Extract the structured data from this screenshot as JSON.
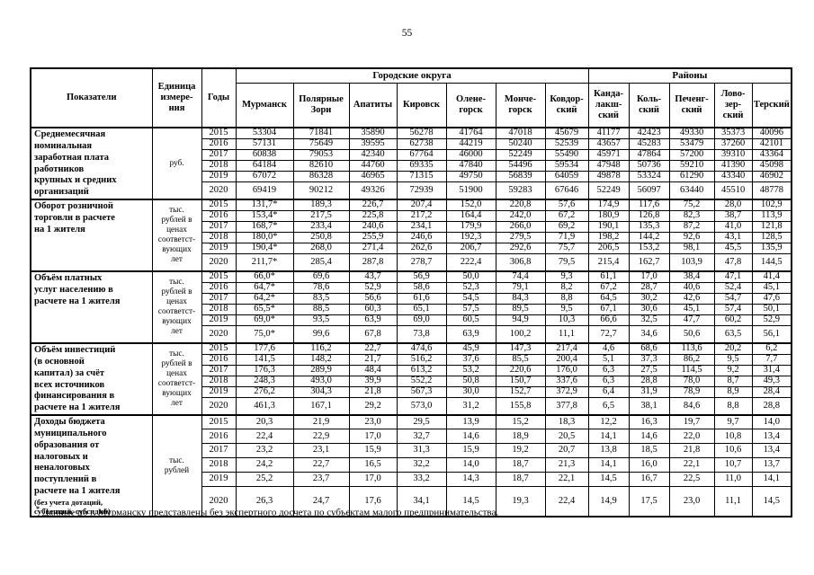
{
  "page": {
    "number": "55",
    "footnote_marker": "*",
    "footnote": "Данные по г. Мурманску представлены без экспертного досчета по субъектам малого предпринимательства."
  },
  "table": {
    "headers": {
      "indicators": "Показатели",
      "unit": "Единица\nизмере-\nния",
      "years": "Годы",
      "group_urban": "Городские округа",
      "group_districts": "Районы",
      "columns": [
        "Мурманск",
        "Полярные\nЗори",
        "Апатиты",
        "Кировск",
        "Олене-\nгорск",
        "Монче-\nгорск",
        "Ковдор-\nский",
        "Канда-\nлакш-\nский",
        "Коль-\nский",
        "Печенг-\nский",
        "Лово-\nзер-\nский",
        "Терский"
      ]
    },
    "blocks": [
      {
        "indicator": "Среднемесячная\nноминальная\nзаработная плата\nработников\nкрупных и средних\nорганизаций",
        "unit": "руб.",
        "rows": [
          {
            "year": "2015",
            "values": [
              "53304",
              "71841",
              "35890",
              "56278",
              "41764",
              "47018",
              "45679",
              "41177",
              "42423",
              "49330",
              "35373",
              "40096"
            ]
          },
          {
            "year": "2016",
            "values": [
              "57131",
              "75649",
              "39595",
              "62738",
              "44219",
              "50240",
              "52539",
              "43657",
              "45283",
              "53479",
              "37260",
              "42101"
            ]
          },
          {
            "year": "2017",
            "values": [
              "60838",
              "79053",
              "42340",
              "67764",
              "46000",
              "52249",
              "55490",
              "45971",
              "47864",
              "57200",
              "39310",
              "43364"
            ]
          },
          {
            "year": "2018",
            "values": [
              "64184",
              "82610",
              "44760",
              "69335",
              "47840",
              "54496",
              "59534",
              "47948",
              "50736",
              "59210",
              "41390",
              "45098"
            ]
          },
          {
            "year": "2019",
            "values": [
              "67072",
              "86328",
              "46965",
              "71315",
              "49750",
              "56839",
              "64059",
              "49878",
              "53324",
              "61290",
              "43340",
              "46902"
            ]
          },
          {
            "year": "2020",
            "values": [
              "69419",
              "90212",
              "49326",
              "72939",
              "51900",
              "59283",
              "67646",
              "52249",
              "56097",
              "63440",
              "45510",
              "48778"
            ]
          }
        ]
      },
      {
        "indicator": "Оборот розничной\nторговли в расчете\nна 1 жителя",
        "unit": "тыс.\nрублей в\nценах\nсоответст-\nвующих\nлет",
        "rows": [
          {
            "year": "2015",
            "values": [
              "131,7*",
              "189,3",
              "226,7",
              "207,4",
              "152,0",
              "220,8",
              "57,6",
              "174,9",
              "117,6",
              "75,2",
              "28,0",
              "102,9"
            ]
          },
          {
            "year": "2016",
            "values": [
              "153,4*",
              "217,5",
              "225,8",
              "217,2",
              "164,4",
              "242,0",
              "67,2",
              "180,9",
              "126,8",
              "82,3",
              "38,7",
              "113,9"
            ]
          },
          {
            "year": "2017",
            "values": [
              "168,7*",
              "233,4",
              "240,6",
              "234,1",
              "179,9",
              "266,0",
              "69,2",
              "190,1",
              "135,3",
              "87,2",
              "41,0",
              "121,8"
            ]
          },
          {
            "year": "2018",
            "values": [
              "180,0*",
              "250,8",
              "255,9",
              "246,6",
              "192,3",
              "279,5",
              "71,9",
              "198,2",
              "144,2",
              "92,6",
              "43,1",
              "128,5"
            ]
          },
          {
            "year": "2019",
            "values": [
              "190,4*",
              "268,0",
              "271,4",
              "262,6",
              "206,7",
              "292,6",
              "75,7",
              "206,5",
              "153,2",
              "98,1",
              "45,5",
              "135,9"
            ]
          },
          {
            "year": "2020",
            "values": [
              "211,7*",
              "285,4",
              "287,8",
              "278,7",
              "222,4",
              "306,8",
              "79,5",
              "215,4",
              "162,7",
              "103,9",
              "47,8",
              "144,5"
            ]
          }
        ]
      },
      {
        "indicator": "Объём платных\nуслуг населению  в\nрасчете на 1 жителя",
        "unit": "тыс.\nрублей в\nценах\nсоответст-\nвующих\nлет",
        "rows": [
          {
            "year": "2015",
            "values": [
              "66,0*",
              "69,6",
              "43,7",
              "56,9",
              "50,0",
              "74,4",
              "9,3",
              "61,1",
              "17,0",
              "38,4",
              "47,1",
              "41,4"
            ]
          },
          {
            "year": "2016",
            "values": [
              "64,7*",
              "78,6",
              "52,9",
              "58,6",
              "52,3",
              "79,1",
              "8,2",
              "67,2",
              "28,7",
              "40,6",
              "52,4",
              "45,1"
            ]
          },
          {
            "year": "2017",
            "values": [
              "64,2*",
              "83,5",
              "56,6",
              "61,6",
              "54,5",
              "84,3",
              "8,8",
              "64,5",
              "30,2",
              "42,6",
              "54,7",
              "47,6"
            ]
          },
          {
            "year": "2018",
            "values": [
              "65,5*",
              "88,5",
              "60,3",
              "65,1",
              "57,5",
              "89,5",
              "9,5",
              "67,1",
              "30,6",
              "45,1",
              "57,4",
              "50,1"
            ]
          },
          {
            "year": "2019",
            "values": [
              "69,0*",
              "93,5",
              "63,9",
              "69,0",
              "60,5",
              "94,9",
              "10,3",
              "66,6",
              "32,5",
              "47,7",
              "60,2",
              "52,9"
            ]
          },
          {
            "year": "2020",
            "values": [
              "75,0*",
              "99,6",
              "67,8",
              "73,8",
              "63,9",
              "100,2",
              "11,1",
              "72,7",
              "34,6",
              "50,6",
              "63,5",
              "56,1"
            ]
          }
        ]
      },
      {
        "indicator": "Объём инвестиций\n(в основной\nкапитал) за счёт\nвсех источников\nфинансирования в\nрасчете на 1 жителя",
        "unit": "тыс.\nрублей в\nценах\nсоответст-\nвующих\nлет",
        "rows": [
          {
            "year": "2015",
            "values": [
              "177,6",
              "116,2",
              "22,7",
              "474,6",
              "45,9",
              "147,3",
              "217,4",
              "4,6",
              "68,6",
              "113,6",
              "20,2",
              "6,2"
            ]
          },
          {
            "year": "2016",
            "values": [
              "141,5",
              "148,2",
              "21,7",
              "516,2",
              "37,6",
              "85,5",
              "200,4",
              "5,1",
              "37,3",
              "86,2",
              "9,5",
              "7,7"
            ]
          },
          {
            "year": "2017",
            "values": [
              "176,3",
              "289,9",
              "48,4",
              "613,2",
              "53,2",
              "220,6",
              "176,0",
              "6,3",
              "27,5",
              "114,5",
              "9,2",
              "31,4"
            ]
          },
          {
            "year": "2018",
            "values": [
              "248,3",
              "493,0",
              "39,9",
              "552,2",
              "50,8",
              "150,7",
              "337,6",
              "6,3",
              "28,8",
              "78,0",
              "8,7",
              "49,3"
            ]
          },
          {
            "year": "2019",
            "values": [
              "276,2",
              "304,3",
              "21,8",
              "567,3",
              "30,0",
              "152,7",
              "372,9",
              "6,4",
              "31,9",
              "78,9",
              "8,9",
              "28,4"
            ]
          },
          {
            "year": "2020",
            "values": [
              "461,3",
              "167,1",
              "29,2",
              "573,0",
              "31,2",
              "155,8",
              "377,8",
              "6,5",
              "38,1",
              "84,6",
              "8,8",
              "28,8"
            ]
          }
        ]
      },
      {
        "indicator": "Доходы бюджета\nмуниципального\nобразования от\nналоговых и\nненалоговых\nпоступлений в\nрасчете на 1 жителя",
        "indicator_note": "(без учета дотаций,\nсубвенций, субсидий)",
        "unit": "тыс.\nрублей",
        "rows": [
          {
            "year": "2015",
            "values": [
              "20,3",
              "21,9",
              "23,0",
              "29,5",
              "13,9",
              "15,2",
              "18,3",
              "12,2",
              "16,3",
              "19,7",
              "9,7",
              "14,0"
            ]
          },
          {
            "year": "2016",
            "values": [
              "22,4",
              "22,9",
              "17,0",
              "32,7",
              "14,6",
              "18,9",
              "20,5",
              "14,1",
              "14,6",
              "22,0",
              "10,8",
              "13,4"
            ]
          },
          {
            "year": "2017",
            "values": [
              "23,2",
              "23,1",
              "15,9",
              "31,3",
              "15,9",
              "19,2",
              "20,7",
              "13,8",
              "18,5",
              "21,8",
              "10,6",
              "13,4"
            ]
          },
          {
            "year": "2018",
            "values": [
              "24,2",
              "22,7",
              "16,5",
              "32,2",
              "14,0",
              "18,7",
              "21,3",
              "14,1",
              "16,0",
              "22,1",
              "10,7",
              "13,7"
            ]
          },
          {
            "year": "2019",
            "values": [
              "25,2",
              "23,7",
              "17,0",
              "33,2",
              "14,3",
              "18,7",
              "22,1",
              "14,5",
              "16,7",
              "22,5",
              "11,0",
              "14,1"
            ]
          },
          {
            "year": "2020",
            "values": [
              "26,3",
              "24,7",
              "17,6",
              "34,1",
              "14,5",
              "19,3",
              "22,4",
              "14,9",
              "17,5",
              "23,0",
              "11,1",
              "14,5"
            ]
          }
        ]
      }
    ]
  }
}
